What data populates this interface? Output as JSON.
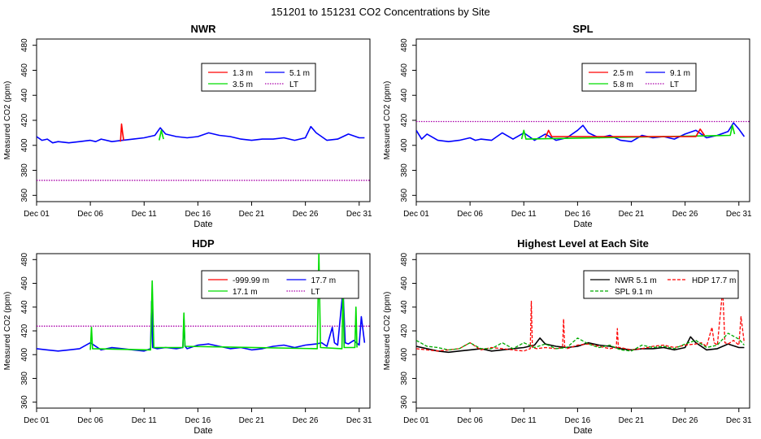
{
  "figure_title": "151201  to  151231 CO2 Concentrations by Site",
  "colors": {
    "red": "#ff0000",
    "green": "#00dd00",
    "blue": "#0000ff",
    "purple": "#aa00aa",
    "black": "#000000"
  },
  "chart_data": [
    {
      "type": "line",
      "title": "NWR",
      "xlabel": "Date",
      "ylabel": "Measured CO2 (ppm)",
      "xlim": [
        1,
        32
      ],
      "ylim": [
        355,
        485
      ],
      "xticks": [
        1,
        6,
        11,
        16,
        21,
        26,
        31
      ],
      "xtick_labels": [
        "Dec 01",
        "Dec 06",
        "Dec 11",
        "Dec 16",
        "Dec 21",
        "Dec 26",
        "Dec 31"
      ],
      "yticks": [
        360,
        380,
        400,
        420,
        440,
        460,
        480
      ],
      "ytick_labels": [
        "360",
        "380",
        "400",
        "420",
        "440",
        "460",
        "480"
      ],
      "legend": [
        {
          "label": "1.3 m",
          "color": "#ff0000",
          "style": "solid"
        },
        {
          "label": "5.1 m",
          "color": "#0000ff",
          "style": "solid"
        },
        {
          "label": "3.5 m",
          "color": "#00dd00",
          "style": "solid"
        },
        {
          "label": "LT",
          "color": "#aa00aa",
          "style": "dotted"
        }
      ],
      "series": [
        {
          "name": "1.3 m",
          "color": "#ff0000",
          "style": "solid",
          "x": [
            8.8,
            8.9,
            9.0,
            9.1
          ],
          "y": [
            403,
            417,
            410,
            404
          ]
        },
        {
          "name": "3.5 m",
          "color": "#00dd00",
          "style": "solid",
          "x": [
            12.4,
            12.6,
            12.8
          ],
          "y": [
            404,
            412,
            405
          ]
        },
        {
          "name": "5.1 m",
          "color": "#0000ff",
          "style": "solid",
          "x": [
            1,
            1.5,
            2,
            2.5,
            3,
            4,
            5,
            6,
            6.5,
            7,
            8,
            9,
            10,
            11,
            12,
            12.5,
            13,
            14,
            15,
            16,
            17,
            18,
            19,
            20,
            21,
            22,
            23,
            24,
            25,
            26,
            26.5,
            27,
            28,
            29,
            30,
            31,
            31.5
          ],
          "y": [
            407,
            404,
            405,
            402,
            403,
            402,
            403,
            404,
            403,
            405,
            403,
            404,
            405,
            406,
            408,
            414,
            409,
            407,
            406,
            407,
            410,
            408,
            407,
            405,
            404,
            405,
            405,
            406,
            404,
            406,
            415,
            410,
            404,
            405,
            409,
            406,
            406
          ]
        },
        {
          "name": "LT",
          "color": "#aa00aa",
          "style": "dotted",
          "x": [
            1,
            32
          ],
          "y": [
            372,
            372
          ]
        }
      ]
    },
    {
      "type": "line",
      "title": "SPL",
      "xlabel": "Date",
      "ylabel": "Measured CO2 (ppm)",
      "xlim": [
        1,
        32
      ],
      "ylim": [
        355,
        485
      ],
      "xticks": [
        1,
        6,
        11,
        16,
        21,
        26,
        31
      ],
      "xtick_labels": [
        "Dec 01",
        "Dec 06",
        "Dec 11",
        "Dec 16",
        "Dec 21",
        "Dec 26",
        "Dec 31"
      ],
      "yticks": [
        360,
        380,
        400,
        420,
        440,
        460,
        480
      ],
      "ytick_labels": [
        "360",
        "380",
        "400",
        "420",
        "440",
        "460",
        "480"
      ],
      "legend": [
        {
          "label": "2.5 m",
          "color": "#ff0000",
          "style": "solid"
        },
        {
          "label": "9.1 m",
          "color": "#0000ff",
          "style": "solid"
        },
        {
          "label": "5.8 m",
          "color": "#00dd00",
          "style": "solid"
        },
        {
          "label": "LT",
          "color": "#aa00aa",
          "style": "dotted"
        }
      ],
      "series": [
        {
          "name": "2.5 m",
          "color": "#ff0000",
          "style": "solid",
          "x": [
            13,
            13.3,
            13.6,
            27,
            27.4,
            27.8
          ],
          "y": [
            406,
            412,
            407,
            407,
            413,
            408
          ]
        },
        {
          "name": "5.8 m",
          "color": "#00dd00",
          "style": "solid",
          "x": [
            10.8,
            11,
            11.2,
            30.2,
            30.4,
            30.6
          ],
          "y": [
            405,
            412,
            405,
            408,
            416,
            409
          ]
        },
        {
          "name": "9.1 m",
          "color": "#0000ff",
          "style": "solid",
          "x": [
            1,
            1.5,
            2,
            3,
            4,
            5,
            6,
            6.5,
            7,
            8,
            9,
            10,
            11,
            12,
            13,
            14,
            15,
            16,
            16.5,
            17,
            18,
            19,
            20,
            21,
            22,
            23,
            24,
            25,
            26,
            27,
            28,
            29,
            30,
            30.5,
            31,
            31.5
          ],
          "y": [
            412,
            405,
            409,
            404,
            403,
            404,
            406,
            404,
            405,
            404,
            410,
            405,
            410,
            404,
            409,
            404,
            406,
            412,
            416,
            410,
            406,
            408,
            404,
            403,
            408,
            406,
            407,
            405,
            409,
            412,
            406,
            408,
            411,
            418,
            413,
            407
          ]
        },
        {
          "name": "LT",
          "color": "#aa00aa",
          "style": "dotted",
          "x": [
            1,
            32
          ],
          "y": [
            419,
            419
          ]
        }
      ]
    },
    {
      "type": "line",
      "title": "HDP",
      "xlabel": "Date",
      "ylabel": "Measured CO2 (ppm)",
      "xlim": [
        1,
        32
      ],
      "ylim": [
        355,
        485
      ],
      "xticks": [
        1,
        6,
        11,
        16,
        21,
        26,
        31
      ],
      "xtick_labels": [
        "Dec 01",
        "Dec 06",
        "Dec 11",
        "Dec 16",
        "Dec 21",
        "Dec 26",
        "Dec 31"
      ],
      "yticks": [
        360,
        380,
        400,
        420,
        440,
        460,
        480
      ],
      "ytick_labels": [
        "360",
        "380",
        "400",
        "420",
        "440",
        "460",
        "480"
      ],
      "legend": [
        {
          "label": "-999.99 m",
          "color": "#ff0000",
          "style": "solid"
        },
        {
          "label": "17.7 m",
          "color": "#0000ff",
          "style": "solid"
        },
        {
          "label": "17.1 m",
          "color": "#00dd00",
          "style": "solid"
        },
        {
          "label": "LT",
          "color": "#aa00aa",
          "style": "dotted"
        }
      ],
      "series": [
        {
          "name": "17.1 m",
          "color": "#00dd00",
          "style": "solid",
          "x": [
            6,
            6.1,
            6.2,
            11.6,
            11.75,
            11.9,
            14.6,
            14.7,
            14.8,
            27.1,
            27.25,
            27.4,
            29.4,
            29.5,
            29.6,
            30.6,
            30.7,
            30.8
          ],
          "y": [
            404,
            423,
            405,
            404,
            462,
            406,
            406,
            435,
            407,
            405,
            485,
            406,
            405,
            460,
            406,
            406,
            440,
            406
          ]
        },
        {
          "name": "17.7 m",
          "color": "#0000ff",
          "style": "solid",
          "x": [
            1,
            2,
            3,
            4,
            5,
            6,
            7,
            8,
            9,
            10,
            11,
            11.6,
            11.7,
            11.8,
            12.2,
            13,
            14,
            14.6,
            14.7,
            14.8,
            15,
            16,
            17,
            18,
            19,
            20,
            21,
            22,
            23,
            24,
            25,
            26,
            27,
            27.5,
            28,
            28.5,
            28.7,
            29,
            29.5,
            29.7,
            30,
            30.5,
            31,
            31.2,
            31.5
          ],
          "y": [
            405,
            404,
            403,
            404,
            405,
            410,
            404,
            406,
            405,
            404,
            403,
            405,
            445,
            406,
            405,
            406,
            405,
            406,
            430,
            407,
            405,
            408,
            409,
            407,
            405,
            406,
            404,
            405,
            407,
            408,
            406,
            408,
            409,
            410,
            407,
            423,
            410,
            408,
            455,
            410,
            409,
            412,
            408,
            432,
            410
          ]
        },
        {
          "name": "LT",
          "color": "#aa00aa",
          "style": "dotted",
          "x": [
            1,
            32
          ],
          "y": [
            424,
            424
          ]
        }
      ]
    },
    {
      "type": "line",
      "title": "Highest Level at Each Site",
      "xlabel": "Date",
      "ylabel": "Measured CO2 (ppm)",
      "xlim": [
        1,
        32
      ],
      "ylim": [
        355,
        485
      ],
      "xticks": [
        1,
        6,
        11,
        16,
        21,
        26,
        31
      ],
      "xtick_labels": [
        "Dec 01",
        "Dec 06",
        "Dec 11",
        "Dec 16",
        "Dec 21",
        "Dec 26",
        "Dec 31"
      ],
      "yticks": [
        360,
        380,
        400,
        420,
        440,
        460,
        480
      ],
      "ytick_labels": [
        "360",
        "380",
        "400",
        "420",
        "440",
        "460",
        "480"
      ],
      "legend": [
        {
          "label": "NWR  5.1 m",
          "color": "#000000",
          "style": "solid"
        },
        {
          "label": "HDP  17.7 m",
          "color": "#ff0000",
          "style": "dashed"
        },
        {
          "label": "SPL  9.1 m",
          "color": "#00aa00",
          "style": "dashed"
        }
      ],
      "series": [
        {
          "name": "SPL  9.1 m",
          "color": "#00aa00",
          "style": "dashed",
          "x": [
            1,
            2,
            3,
            4,
            5,
            6,
            7,
            8,
            9,
            10,
            11,
            12,
            13,
            14,
            15,
            16,
            17,
            18,
            19,
            20,
            21,
            22,
            23,
            24,
            25,
            26,
            27,
            28,
            29,
            30,
            31,
            31.5
          ],
          "y": [
            412,
            407,
            406,
            404,
            405,
            410,
            405,
            405,
            410,
            405,
            410,
            406,
            409,
            405,
            406,
            414,
            409,
            406,
            408,
            404,
            403,
            408,
            406,
            407,
            405,
            409,
            412,
            406,
            408,
            418,
            413,
            408
          ]
        },
        {
          "name": "HDP  17.7 m",
          "color": "#ff0000",
          "style": "dashed",
          "x": [
            1,
            2,
            3,
            4,
            5,
            6,
            7,
            8,
            9,
            10,
            11,
            11.6,
            11.7,
            11.8,
            12.2,
            13,
            14,
            14.6,
            14.7,
            14.8,
            15,
            16,
            17,
            18,
            19,
            19.6,
            19.7,
            19.8,
            20,
            21,
            22,
            23,
            24,
            25,
            26,
            27,
            27.5,
            28,
            28.5,
            28.7,
            29,
            29.5,
            29.7,
            30,
            30.5,
            31,
            31.2,
            31.5
          ],
          "y": [
            405,
            404,
            403,
            404,
            405,
            410,
            404,
            406,
            405,
            404,
            403,
            405,
            445,
            406,
            405,
            406,
            405,
            406,
            430,
            407,
            405,
            408,
            409,
            407,
            405,
            406,
            422,
            406,
            406,
            404,
            405,
            407,
            408,
            406,
            408,
            409,
            410,
            407,
            423,
            410,
            408,
            455,
            410,
            409,
            412,
            408,
            432,
            410
          ]
        },
        {
          "name": "NWR  5.1 m",
          "color": "#000000",
          "style": "solid",
          "x": [
            1,
            2,
            3,
            4,
            5,
            6,
            7,
            8,
            9,
            10,
            11,
            12,
            12.5,
            13,
            14,
            15,
            16,
            17,
            18,
            19,
            20,
            21,
            22,
            23,
            24,
            25,
            26,
            26.5,
            27,
            28,
            29,
            30,
            31,
            31.5
          ],
          "y": [
            407,
            405,
            403,
            402,
            403,
            404,
            405,
            403,
            404,
            405,
            406,
            408,
            414,
            409,
            407,
            406,
            407,
            410,
            408,
            407,
            405,
            404,
            405,
            405,
            406,
            404,
            406,
            415,
            410,
            404,
            405,
            409,
            406,
            406
          ]
        }
      ]
    }
  ]
}
